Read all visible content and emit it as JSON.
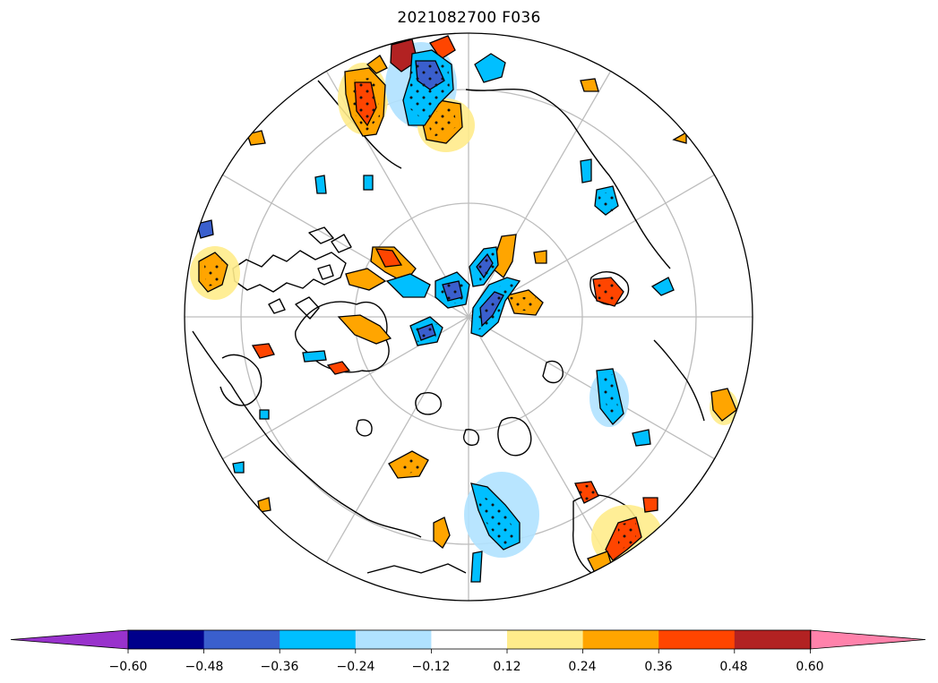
{
  "title": "2021082700 F036",
  "colorbar": {
    "extend": "both",
    "ticks": [
      "−0.60",
      "−0.48",
      "−0.36",
      "−0.24",
      "−0.12",
      "0.12",
      "0.24",
      "0.36",
      "0.48",
      "0.60"
    ],
    "colors": [
      "#9932CC",
      "#00008B",
      "#3A5FCD",
      "#00BFFF",
      "#B0E2FF",
      "#FFFFFF",
      "#FFEC8B",
      "#FFA500",
      "#FF4500",
      "#B22222",
      "#FF82AB"
    ]
  },
  "map": {
    "projection": "north-polar-stereographic",
    "graticule_color": "#bdbdbd",
    "coastline_color": "#000000",
    "stipple": "significance-dots"
  }
}
